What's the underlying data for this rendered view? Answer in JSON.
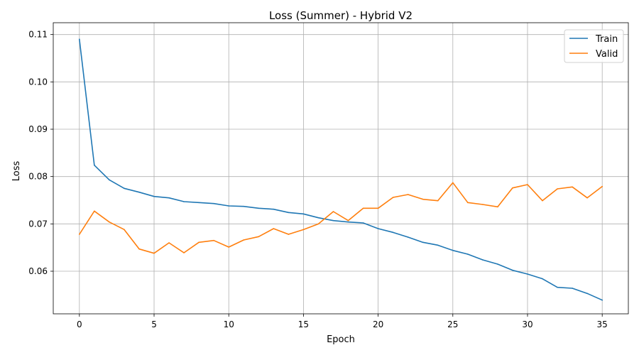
{
  "chart_data": {
    "type": "line",
    "title": "Loss (Summer) - Hybrid V2",
    "xlabel": "Epoch",
    "ylabel": "Loss",
    "x": [
      0,
      1,
      2,
      3,
      4,
      5,
      6,
      7,
      8,
      9,
      10,
      11,
      12,
      13,
      14,
      15,
      16,
      17,
      18,
      19,
      20,
      21,
      22,
      23,
      24,
      25,
      26,
      27,
      28,
      29,
      30,
      31,
      32,
      33,
      34,
      35
    ],
    "xlim": [
      -1.75,
      36.75
    ],
    "ylim": [
      0.051,
      0.1125
    ],
    "xticks": [
      0,
      5,
      10,
      15,
      20,
      25,
      30,
      35
    ],
    "yticks": [
      0.06,
      0.07,
      0.08,
      0.09,
      0.1,
      0.11
    ],
    "ytick_labels": [
      "0.06",
      "0.07",
      "0.08",
      "0.09",
      "0.10",
      "0.11"
    ],
    "grid": true,
    "legend_position": "top-right",
    "series": [
      {
        "name": "Train",
        "color": "#1f77b4",
        "values": [
          0.109,
          0.0824,
          0.0793,
          0.0775,
          0.0767,
          0.0758,
          0.0755,
          0.0747,
          0.0745,
          0.0743,
          0.0738,
          0.0737,
          0.0733,
          0.0731,
          0.0724,
          0.0721,
          0.0713,
          0.0707,
          0.0704,
          0.0702,
          0.069,
          0.0682,
          0.0672,
          0.0661,
          0.0655,
          0.0644,
          0.0636,
          0.0624,
          0.0615,
          0.0602,
          0.0594,
          0.0584,
          0.0566,
          0.0564,
          0.0553,
          0.0539
        ]
      },
      {
        "name": "Valid",
        "color": "#ff7f0e",
        "values": [
          0.0678,
          0.0727,
          0.0704,
          0.0688,
          0.0647,
          0.0638,
          0.066,
          0.0639,
          0.0661,
          0.0665,
          0.0651,
          0.0666,
          0.0673,
          0.069,
          0.0678,
          0.0688,
          0.07,
          0.0726,
          0.0707,
          0.0733,
          0.0733,
          0.0756,
          0.0762,
          0.0752,
          0.0749,
          0.0787,
          0.0745,
          0.0741,
          0.0736,
          0.0776,
          0.0783,
          0.0749,
          0.0774,
          0.0778,
          0.0755,
          0.0779
        ]
      }
    ]
  }
}
